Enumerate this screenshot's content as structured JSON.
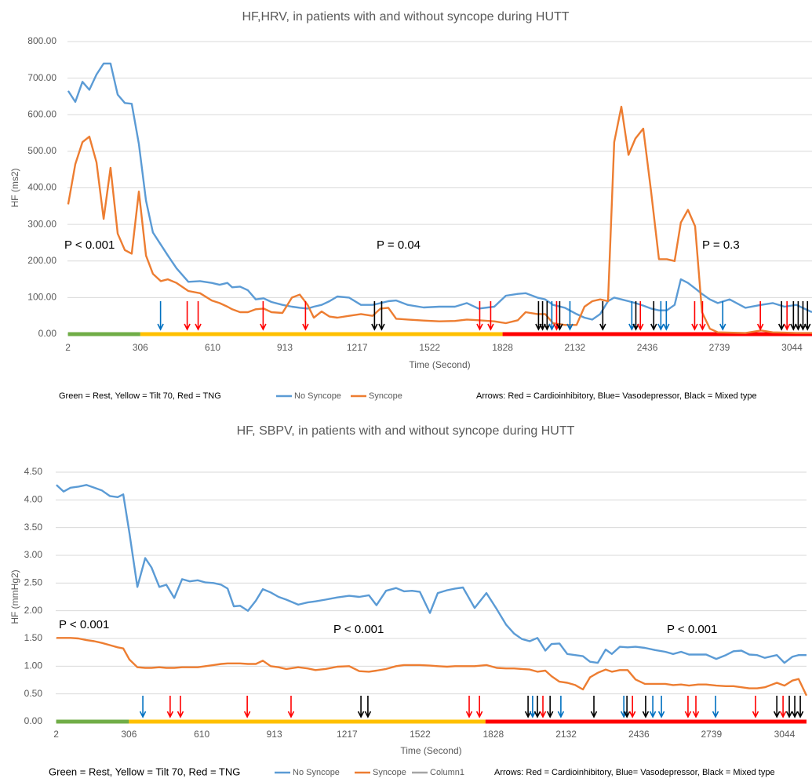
{
  "chart_data": [
    {
      "type": "line",
      "title": "HF,HRV, in patients with and without syncope during HUTT",
      "x_label": "Time (Second)",
      "y_label": "HF (ms2)",
      "xlim": [
        0,
        3128
      ],
      "xticks": [
        2,
        306,
        610,
        913,
        1217,
        1522,
        1828,
        2132,
        2436,
        2739,
        3044
      ],
      "ylim": [
        0,
        800
      ],
      "yticks": [
        {
          "value": 0,
          "label": "0.00"
        },
        {
          "value": 100,
          "label": "100.00"
        },
        {
          "value": 200,
          "label": "200.00"
        },
        {
          "value": 300,
          "label": "300.00"
        },
        {
          "value": 400,
          "label": "400.00"
        },
        {
          "value": 500,
          "label": "500.00"
        },
        {
          "value": 600,
          "label": "600.00"
        },
        {
          "value": 700,
          "label": "700.00"
        },
        {
          "value": 800,
          "label": "800.00"
        }
      ],
      "grid": true,
      "x": [
        3,
        33,
        63,
        92,
        122,
        152,
        181,
        211,
        241,
        270,
        300,
        330,
        359,
        392,
        422,
        458,
        508,
        557,
        606,
        639,
        672,
        692,
        725,
        758,
        791,
        824,
        857,
        903,
        943,
        976,
        1009,
        1035,
        1068,
        1101,
        1134,
        1183,
        1233,
        1282,
        1315,
        1348,
        1381,
        1430,
        1496,
        1562,
        1628,
        1678,
        1727,
        1793,
        1842,
        1892,
        1925,
        1974,
        2007,
        2040,
        2090,
        2139,
        2172,
        2205,
        2238,
        2271,
        2297,
        2327,
        2357,
        2386,
        2419,
        2452,
        2485,
        2518,
        2551,
        2577,
        2607,
        2637,
        2666,
        2699,
        2732,
        2782,
        2848,
        2914,
        2963,
        3013,
        3062,
        3128
      ],
      "series": [
        {
          "name": "No Syncope",
          "color": "#5b9bd5",
          "values": [
            665,
            635,
            690,
            668,
            710,
            740,
            740,
            655,
            632,
            630,
            520,
            365,
            278,
            245,
            215,
            180,
            143,
            145,
            140,
            135,
            140,
            128,
            130,
            120,
            95,
            98,
            88,
            80,
            75,
            72,
            70,
            75,
            80,
            90,
            103,
            100,
            80,
            80,
            85,
            90,
            92,
            80,
            73,
            75,
            75,
            85,
            70,
            75,
            105,
            110,
            112,
            100,
            95,
            80,
            72,
            55,
            45,
            40,
            55,
            90,
            100,
            95,
            90,
            85,
            78,
            70,
            65,
            65,
            80,
            150,
            140,
            125,
            110,
            95,
            85,
            95,
            72,
            80,
            85,
            75,
            80,
            60
          ]
        },
        {
          "name": "Syncope",
          "color": "#ed7d31",
          "values": [
            355,
            465,
            525,
            540,
            470,
            315,
            455,
            275,
            230,
            220,
            390,
            215,
            165,
            145,
            150,
            140,
            118,
            112,
            92,
            85,
            75,
            68,
            60,
            60,
            68,
            70,
            60,
            58,
            100,
            108,
            80,
            45,
            62,
            48,
            45,
            50,
            55,
            50,
            70,
            72,
            42,
            40,
            37,
            35,
            36,
            40,
            38,
            35,
            30,
            38,
            60,
            55,
            55,
            30,
            25,
            25,
            75,
            90,
            95,
            90,
            525,
            622,
            490,
            535,
            562,
            390,
            205,
            205,
            200,
            305,
            340,
            295,
            60,
            15,
            5,
            4,
            3,
            10,
            5,
            4,
            3,
            3
          ]
        }
      ],
      "phases": [
        {
          "start": 2,
          "end": 306,
          "color": "#70ad47"
        },
        {
          "start": 306,
          "end": 1828,
          "color": "#ffc000"
        },
        {
          "start": 1828,
          "end": 3128,
          "color": "#ff0000"
        }
      ],
      "phase_note": "Green = Rest, Yellow = Tilt 70, Red = TNG",
      "arrows": [
        {
          "x": 391,
          "color": "#0070c0"
        },
        {
          "x": 503,
          "color": "#ff0000"
        },
        {
          "x": 549,
          "color": "#ff0000"
        },
        {
          "x": 822,
          "color": "#ff0000"
        },
        {
          "x": 1000,
          "color": "#ff0000"
        },
        {
          "x": 1290,
          "color": "#000000"
        },
        {
          "x": 1320,
          "color": "#000000"
        },
        {
          "x": 1732,
          "color": "#ff0000"
        },
        {
          "x": 1778,
          "color": "#ff0000"
        },
        {
          "x": 1979,
          "color": "#000000"
        },
        {
          "x": 1996,
          "color": "#000000"
        },
        {
          "x": 2015,
          "color": "#000000"
        },
        {
          "x": 2035,
          "color": "#0070c0"
        },
        {
          "x": 2055,
          "color": "#ff0000"
        },
        {
          "x": 2068,
          "color": "#000000"
        },
        {
          "x": 2111,
          "color": "#0070c0"
        },
        {
          "x": 2249,
          "color": "#000000"
        },
        {
          "x": 2371,
          "color": "#0070c0"
        },
        {
          "x": 2388,
          "color": "#000000"
        },
        {
          "x": 2407,
          "color": "#ff0000"
        },
        {
          "x": 2463,
          "color": "#000000"
        },
        {
          "x": 2493,
          "color": "#0070c0"
        },
        {
          "x": 2516,
          "color": "#0070c0"
        },
        {
          "x": 2635,
          "color": "#ff0000"
        },
        {
          "x": 2668,
          "color": "#ff0000"
        },
        {
          "x": 2753,
          "color": "#0070c0"
        },
        {
          "x": 2911,
          "color": "#ff0000"
        },
        {
          "x": 3000,
          "color": "#000000"
        },
        {
          "x": 3023,
          "color": "#ff0000"
        },
        {
          "x": 3050,
          "color": "#000000"
        },
        {
          "x": 3070,
          "color": "#000000"
        },
        {
          "x": 3090,
          "color": "#000000"
        },
        {
          "x": 3109,
          "color": "#000000"
        }
      ],
      "arrow_note": "Arrows: Red = Cardioinhibitory, Blue= Vasodepressor, Black = Mixed type",
      "annotations": [
        "P < 0.001",
        "P = 0.04",
        "P = 0.3"
      ]
    },
    {
      "type": "line",
      "title": "HF, SBPV, in patients with and without syncope during HUTT",
      "x_label": "Time (Second)",
      "y_label": "HF (mmHg2)",
      "xlim": [
        0,
        3136
      ],
      "xticks": [
        2,
        306,
        610,
        913,
        1217,
        1522,
        1828,
        2132,
        2436,
        2739,
        3044
      ],
      "ylim": [
        0,
        4.5
      ],
      "yticks": [
        {
          "value": 0,
          "label": "0.00"
        },
        {
          "value": 0.5,
          "label": "0.50"
        },
        {
          "value": 1,
          "label": "1.00"
        },
        {
          "value": 1.5,
          "label": "1.50"
        },
        {
          "value": 2,
          "label": "2.00"
        },
        {
          "value": 2.5,
          "label": "2.50"
        },
        {
          "value": 3,
          "label": "3.00"
        },
        {
          "value": 3.5,
          "label": "3.50"
        },
        {
          "value": 4,
          "label": "4.00"
        },
        {
          "value": 4.5,
          "label": "4.50"
        }
      ],
      "grid": true,
      "x": [
        3,
        33,
        62,
        95,
        128,
        161,
        193,
        226,
        259,
        282,
        308,
        341,
        374,
        400,
        433,
        462,
        495,
        528,
        560,
        593,
        626,
        659,
        691,
        718,
        744,
        770,
        803,
        836,
        865,
        898,
        931,
        963,
        1013,
        1052,
        1085,
        1127,
        1176,
        1226,
        1268,
        1308,
        1340,
        1380,
        1422,
        1455,
        1488,
        1521,
        1563,
        1596,
        1635,
        1668,
        1701,
        1750,
        1799,
        1842,
        1881,
        1914,
        1947,
        1980,
        2012,
        2045,
        2071,
        2104,
        2137,
        2170,
        2202,
        2232,
        2264,
        2297,
        2323,
        2356,
        2389,
        2422,
        2461,
        2504,
        2546,
        2579,
        2612,
        2645,
        2684,
        2717,
        2759,
        2799,
        2831,
        2864,
        2897,
        2930,
        2962,
        3012,
        3044,
        3077,
        3103,
        3136
      ],
      "series": [
        {
          "name": "No Syncope",
          "color": "#5b9bd5",
          "values": [
            4.27,
            4.15,
            4.22,
            4.24,
            4.27,
            4.22,
            4.17,
            4.07,
            4.05,
            4.1,
            3.4,
            2.43,
            2.95,
            2.78,
            2.43,
            2.47,
            2.23,
            2.57,
            2.53,
            2.55,
            2.51,
            2.5,
            2.47,
            2.4,
            2.08,
            2.09,
            2.0,
            2.18,
            2.39,
            2.33,
            2.25,
            2.2,
            2.11,
            2.15,
            2.17,
            2.2,
            2.24,
            2.27,
            2.25,
            2.28,
            2.1,
            2.36,
            2.41,
            2.35,
            2.36,
            2.34,
            1.96,
            2.32,
            2.37,
            2.4,
            2.42,
            2.05,
            2.32,
            2.03,
            1.75,
            1.59,
            1.49,
            1.45,
            1.51,
            1.28,
            1.4,
            1.41,
            1.22,
            1.2,
            1.18,
            1.08,
            1.06,
            1.3,
            1.22,
            1.35,
            1.34,
            1.35,
            1.33,
            1.29,
            1.26,
            1.22,
            1.26,
            1.21,
            1.21,
            1.21,
            1.13,
            1.2,
            1.27,
            1.28,
            1.21,
            1.2,
            1.15,
            1.2,
            1.06,
            1.17,
            1.2,
            1.2
          ]
        },
        {
          "name": "Syncope",
          "color": "#ed7d31",
          "values": [
            1.51,
            1.51,
            1.51,
            1.5,
            1.47,
            1.45,
            1.42,
            1.38,
            1.34,
            1.32,
            1.12,
            0.98,
            0.97,
            0.97,
            0.98,
            0.97,
            0.97,
            0.98,
            0.98,
            0.98,
            1.0,
            1.02,
            1.04,
            1.05,
            1.05,
            1.05,
            1.04,
            1.04,
            1.1,
            1.0,
            0.98,
            0.95,
            0.98,
            0.96,
            0.93,
            0.95,
            0.99,
            1.0,
            0.91,
            0.9,
            0.92,
            0.95,
            1.0,
            1.02,
            1.02,
            1.02,
            1.01,
            1.0,
            0.99,
            1.0,
            1.0,
            1.0,
            1.02,
            0.97,
            0.96,
            0.96,
            0.95,
            0.94,
            0.9,
            0.92,
            0.82,
            0.72,
            0.7,
            0.66,
            0.58,
            0.8,
            0.88,
            0.94,
            0.9,
            0.93,
            0.93,
            0.76,
            0.68,
            0.68,
            0.68,
            0.66,
            0.67,
            0.65,
            0.67,
            0.67,
            0.65,
            0.64,
            0.64,
            0.62,
            0.6,
            0.6,
            0.62,
            0.7,
            0.65,
            0.74,
            0.77,
            0.47
          ]
        },
        {
          "name": "Column1",
          "color": "#a5a5a5",
          "values": [
            null,
            null,
            null,
            null,
            null,
            null,
            null,
            null,
            null,
            null,
            null,
            null,
            null,
            null,
            null,
            null,
            null,
            null,
            null,
            null,
            null,
            null,
            null,
            null,
            null,
            null,
            null,
            null,
            null,
            null,
            null,
            null,
            null,
            null,
            null,
            null,
            null,
            null,
            null,
            null,
            null,
            null,
            null,
            null,
            null,
            null,
            null,
            null,
            null,
            null,
            null,
            null,
            null,
            null,
            null,
            null,
            null,
            null,
            null,
            null,
            null,
            null,
            null,
            null,
            null,
            null,
            null,
            null,
            null,
            null,
            null,
            null,
            null,
            null,
            null,
            null,
            null,
            null,
            null,
            null,
            null,
            null,
            null,
            null,
            null,
            null,
            null,
            null,
            null,
            null,
            null,
            null
          ]
        }
      ],
      "phases": [
        {
          "start": 2,
          "end": 306,
          "color": "#70ad47"
        },
        {
          "start": 306,
          "end": 1795,
          "color": "#ffc000"
        },
        {
          "start": 1795,
          "end": 3136,
          "color": "#ff0000"
        }
      ],
      "phase_note": "Green = Rest, Yellow = Tilt 70, Red = TNG",
      "arrows": [
        {
          "x": 364,
          "color": "#0070c0"
        },
        {
          "x": 478,
          "color": "#ff0000"
        },
        {
          "x": 521,
          "color": "#ff0000"
        },
        {
          "x": 800,
          "color": "#ff0000"
        },
        {
          "x": 983,
          "color": "#ff0000"
        },
        {
          "x": 1275,
          "color": "#000000"
        },
        {
          "x": 1304,
          "color": "#000000"
        },
        {
          "x": 1727,
          "color": "#ff0000"
        },
        {
          "x": 1770,
          "color": "#ff0000"
        },
        {
          "x": 1973,
          "color": "#000000"
        },
        {
          "x": 1992,
          "color": "#0070c0"
        },
        {
          "x": 2012,
          "color": "#000000"
        },
        {
          "x": 2035,
          "color": "#ff0000"
        },
        {
          "x": 2065,
          "color": "#000000"
        },
        {
          "x": 2110,
          "color": "#0070c0"
        },
        {
          "x": 2248,
          "color": "#000000"
        },
        {
          "x": 2373,
          "color": "#0070c0"
        },
        {
          "x": 2386,
          "color": "#000000"
        },
        {
          "x": 2409,
          "color": "#ff0000"
        },
        {
          "x": 2464,
          "color": "#000000"
        },
        {
          "x": 2494,
          "color": "#0070c0"
        },
        {
          "x": 2530,
          "color": "#0070c0"
        },
        {
          "x": 2641,
          "color": "#ff0000"
        },
        {
          "x": 2674,
          "color": "#ff0000"
        },
        {
          "x": 2756,
          "color": "#0070c0"
        },
        {
          "x": 2923,
          "color": "#ff0000"
        },
        {
          "x": 3012,
          "color": "#000000"
        },
        {
          "x": 3038,
          "color": "#ff0000"
        },
        {
          "x": 3064,
          "color": "#000000"
        },
        {
          "x": 3087,
          "color": "#000000"
        },
        {
          "x": 3110,
          "color": "#000000"
        }
      ],
      "arrow_note": "Arrows: Red = Cardioinhibitory,  Blue= Vasodepressor,  Black = Mixed type",
      "annotations": [
        "P < 0.001",
        "P < 0.001",
        "P < 0.001"
      ]
    }
  ]
}
